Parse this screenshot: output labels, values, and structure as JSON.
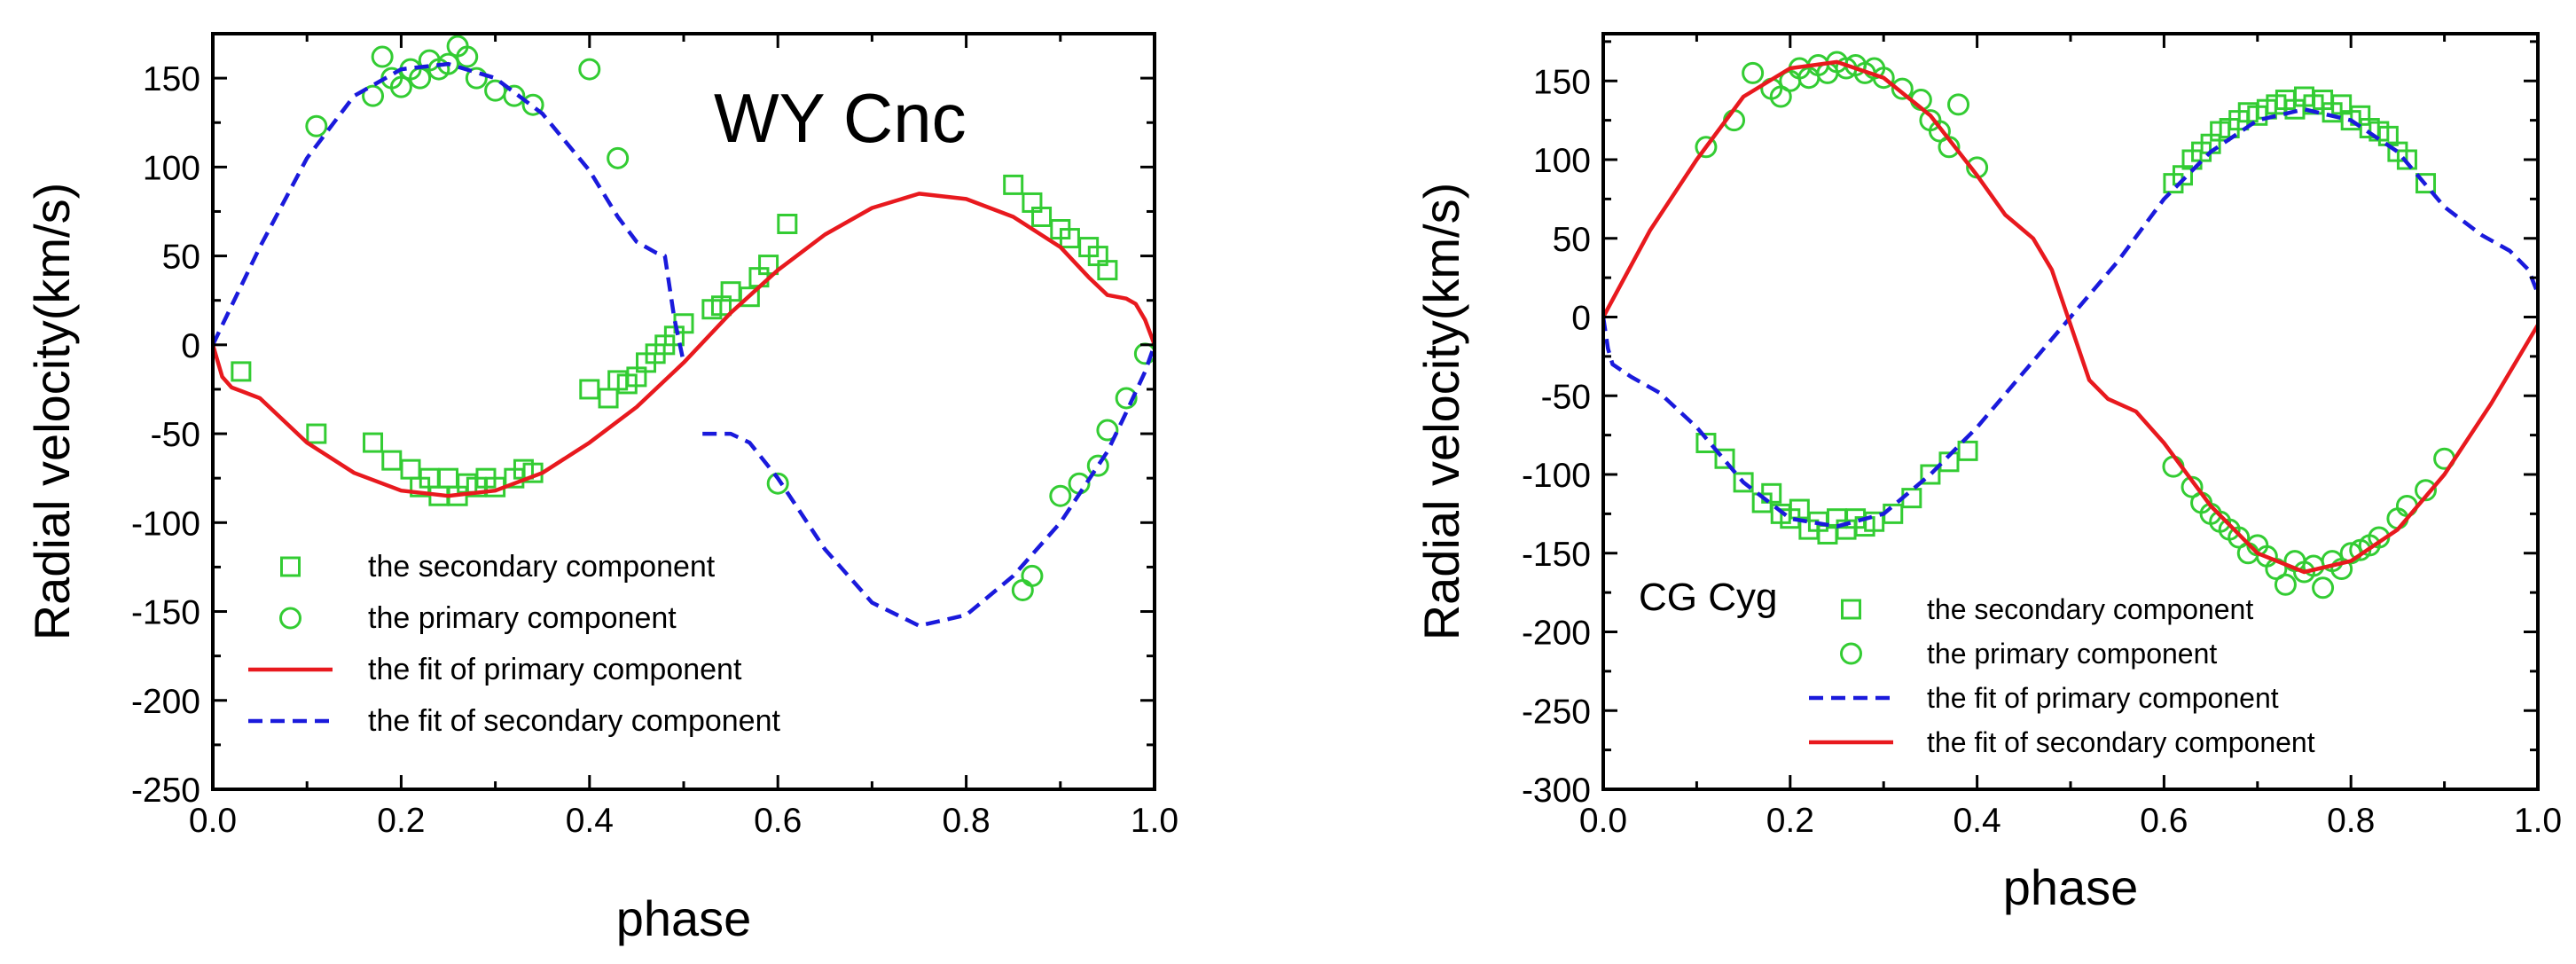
{
  "colors": {
    "green": "#33cc33",
    "red": "#e8191e",
    "blue": "#1a1adc",
    "axis": "#000000"
  },
  "chart_data": [
    {
      "type": "line",
      "title": "WY Cnc",
      "xlabel": "phase",
      "ylabel": "Radial velocity(km/s)",
      "xlim": [
        0,
        1
      ],
      "ylim": [
        -250,
        175
      ],
      "xticks": [
        "0.0",
        "0.2",
        "0.4",
        "0.6",
        "0.8",
        "1.0"
      ],
      "yticks": [
        "150",
        "100",
        "50",
        "0",
        "-50",
        "-100",
        "-150",
        "-200",
        "-250"
      ],
      "legend_position": "bottom-left",
      "series": [
        {
          "name": "the secondary component",
          "kind": "scatter",
          "marker": "square",
          "color": "#33cc33",
          "x": [
            0.03,
            0.11,
            0.17,
            0.19,
            0.21,
            0.22,
            0.23,
            0.24,
            0.25,
            0.26,
            0.27,
            0.28,
            0.29,
            0.3,
            0.32,
            0.33,
            0.34,
            0.4,
            0.42,
            0.43,
            0.44,
            0.45,
            0.46,
            0.47,
            0.48,
            0.49,
            0.5,
            0.53,
            0.54,
            0.55,
            0.57,
            0.58,
            0.59,
            0.61,
            0.85,
            0.87,
            0.88,
            0.9,
            0.91,
            0.93,
            0.94,
            0.95
          ],
          "y": [
            -15,
            -50,
            -55,
            -65,
            -70,
            -80,
            -75,
            -85,
            -75,
            -85,
            -78,
            -80,
            -75,
            -80,
            -75,
            -70,
            -72,
            -25,
            -30,
            -20,
            -22,
            -18,
            -10,
            -5,
            0,
            5,
            12,
            20,
            22,
            30,
            27,
            38,
            45,
            68,
            90,
            80,
            72,
            65,
            60,
            55,
            50,
            42
          ]
        },
        {
          "name": "the primary component",
          "kind": "scatter",
          "marker": "circle",
          "color": "#33cc33",
          "x": [
            0.11,
            0.17,
            0.18,
            0.19,
            0.2,
            0.21,
            0.22,
            0.23,
            0.24,
            0.25,
            0.26,
            0.27,
            0.28,
            0.3,
            0.32,
            0.34,
            0.4,
            0.43,
            0.6,
            0.86,
            0.87,
            0.9,
            0.92,
            0.94,
            0.95,
            0.97,
            0.99
          ],
          "y": [
            123,
            140,
            162,
            150,
            145,
            155,
            150,
            160,
            155,
            158,
            168,
            162,
            150,
            143,
            140,
            135,
            155,
            105,
            -78,
            -138,
            -130,
            -85,
            -78,
            -68,
            -48,
            -30,
            -5
          ]
        },
        {
          "name": "the fit of primary component",
          "kind": "line",
          "color": "#e8191e",
          "dash": "solid",
          "x": [
            0.0,
            0.01,
            0.02,
            0.03,
            0.05,
            0.07,
            0.1,
            0.15,
            0.2,
            0.25,
            0.3,
            0.35,
            0.4,
            0.45,
            0.5,
            0.55,
            0.6,
            0.65,
            0.7,
            0.75,
            0.8,
            0.85,
            0.9,
            0.93,
            0.95,
            0.97,
            0.98,
            0.99,
            1.0
          ],
          "y": [
            0,
            -18,
            -24,
            -26,
            -30,
            -40,
            -55,
            -72,
            -82,
            -85,
            -82,
            -72,
            -55,
            -35,
            -10,
            18,
            42,
            62,
            77,
            85,
            82,
            72,
            55,
            38,
            28,
            26,
            23,
            14,
            0
          ]
        },
        {
          "name": "the fit of secondary component",
          "kind": "line",
          "color": "#1a1adc",
          "dash": "dashed",
          "segments": [
            {
              "x": [
                0.0,
                0.02,
                0.05,
                0.1,
                0.15,
                0.2,
                0.25,
                0.3,
                0.35,
                0.4,
                0.43,
                0.45,
                0.47,
                0.48,
                0.49,
                0.5
              ],
              "y": [
                0,
                22,
                55,
                105,
                140,
                155,
                158,
                150,
                130,
                98,
                72,
                58,
                52,
                50,
                15,
                -10
              ]
            },
            {
              "x": [
                0.52,
                0.55,
                0.57,
                0.6,
                0.65,
                0.7,
                0.75,
                0.8,
                0.85,
                0.9,
                0.95,
                0.97,
                0.99,
                1.0
              ],
              "y": [
                -50,
                -50,
                -55,
                -75,
                -115,
                -145,
                -158,
                -152,
                -130,
                -100,
                -60,
                -38,
                -15,
                0
              ]
            }
          ]
        }
      ]
    },
    {
      "type": "line",
      "title": "CG Cyg",
      "xlabel": "phase",
      "ylabel": "Radial velocity(km/s)",
      "xlim": [
        0,
        1
      ],
      "ylim": [
        -300,
        180
      ],
      "xticks": [
        "0.0",
        "0.2",
        "0.4",
        "0.6",
        "0.8",
        "1.0"
      ],
      "yticks": [
        "150",
        "100",
        "50",
        "0",
        "-50",
        "-100",
        "-150",
        "-200",
        "-250",
        "-300"
      ],
      "legend_position": "bottom-center",
      "series": [
        {
          "name": "the secondary component",
          "kind": "scatter",
          "marker": "square",
          "color": "#33cc33",
          "x": [
            0.11,
            0.13,
            0.15,
            0.17,
            0.18,
            0.19,
            0.2,
            0.21,
            0.22,
            0.23,
            0.24,
            0.25,
            0.26,
            0.27,
            0.28,
            0.29,
            0.31,
            0.33,
            0.35,
            0.37,
            0.39,
            0.61,
            0.62,
            0.63,
            0.64,
            0.65,
            0.66,
            0.67,
            0.68,
            0.69,
            0.7,
            0.71,
            0.72,
            0.73,
            0.74,
            0.75,
            0.76,
            0.77,
            0.78,
            0.79,
            0.8,
            0.81,
            0.82,
            0.83,
            0.84,
            0.85,
            0.86,
            0.88
          ],
          "y": [
            -80,
            -90,
            -105,
            -118,
            -112,
            -125,
            -128,
            -122,
            -135,
            -130,
            -138,
            -128,
            -135,
            -128,
            -133,
            -130,
            -125,
            -115,
            -100,
            -92,
            -85,
            85,
            90,
            100,
            105,
            110,
            118,
            120,
            125,
            130,
            128,
            132,
            135,
            138,
            132,
            140,
            135,
            138,
            130,
            135,
            125,
            128,
            120,
            118,
            115,
            105,
            100,
            85
          ]
        },
        {
          "name": "the primary component",
          "kind": "scatter",
          "marker": "circle",
          "color": "#33cc33",
          "x": [
            0.11,
            0.14,
            0.16,
            0.18,
            0.19,
            0.2,
            0.21,
            0.22,
            0.23,
            0.24,
            0.25,
            0.26,
            0.27,
            0.28,
            0.29,
            0.3,
            0.32,
            0.34,
            0.35,
            0.36,
            0.37,
            0.38,
            0.4,
            0.61,
            0.63,
            0.64,
            0.65,
            0.66,
            0.67,
            0.68,
            0.69,
            0.7,
            0.71,
            0.72,
            0.73,
            0.74,
            0.75,
            0.76,
            0.77,
            0.78,
            0.79,
            0.8,
            0.81,
            0.82,
            0.83,
            0.85,
            0.86,
            0.88,
            0.9
          ],
          "y": [
            108,
            125,
            155,
            145,
            140,
            150,
            158,
            152,
            160,
            155,
            162,
            158,
            160,
            155,
            158,
            152,
            145,
            138,
            125,
            118,
            108,
            135,
            95,
            -95,
            -108,
            -118,
            -125,
            -130,
            -135,
            -140,
            -150,
            -145,
            -152,
            -160,
            -170,
            -155,
            -162,
            -158,
            -172,
            -155,
            -160,
            -150,
            -148,
            -145,
            -140,
            -128,
            -120,
            -110,
            -90
          ]
        },
        {
          "name": "the fit of primary component",
          "kind": "line",
          "color": "#1a1adc",
          "dash": "dashed",
          "x": [
            0.0,
            0.005,
            0.01,
            0.03,
            0.06,
            0.1,
            0.15,
            0.2,
            0.25,
            0.3,
            0.35,
            0.4,
            0.45,
            0.5,
            0.55,
            0.6,
            0.65,
            0.7,
            0.75,
            0.8,
            0.85,
            0.9,
            0.94,
            0.97,
            0.99,
            1.0
          ],
          "y": [
            0,
            -20,
            -30,
            -38,
            -48,
            -70,
            -105,
            -128,
            -133,
            -125,
            -100,
            -70,
            -35,
            0,
            35,
            75,
            105,
            125,
            132,
            125,
            105,
            70,
            52,
            42,
            30,
            15
          ]
        },
        {
          "name": "the fit of secondary component",
          "kind": "line",
          "color": "#e8191e",
          "dash": "solid",
          "x": [
            0.0,
            0.05,
            0.1,
            0.15,
            0.2,
            0.25,
            0.3,
            0.35,
            0.4,
            0.43,
            0.46,
            0.48,
            0.5,
            0.52,
            0.54,
            0.57,
            0.6,
            0.65,
            0.7,
            0.75,
            0.8,
            0.85,
            0.9,
            0.95,
            1.0
          ],
          "y": [
            0,
            55,
            100,
            140,
            158,
            162,
            152,
            128,
            90,
            65,
            50,
            30,
            -5,
            -40,
            -52,
            -60,
            -80,
            -120,
            -150,
            -162,
            -155,
            -135,
            -100,
            -55,
            -5
          ]
        }
      ]
    }
  ]
}
